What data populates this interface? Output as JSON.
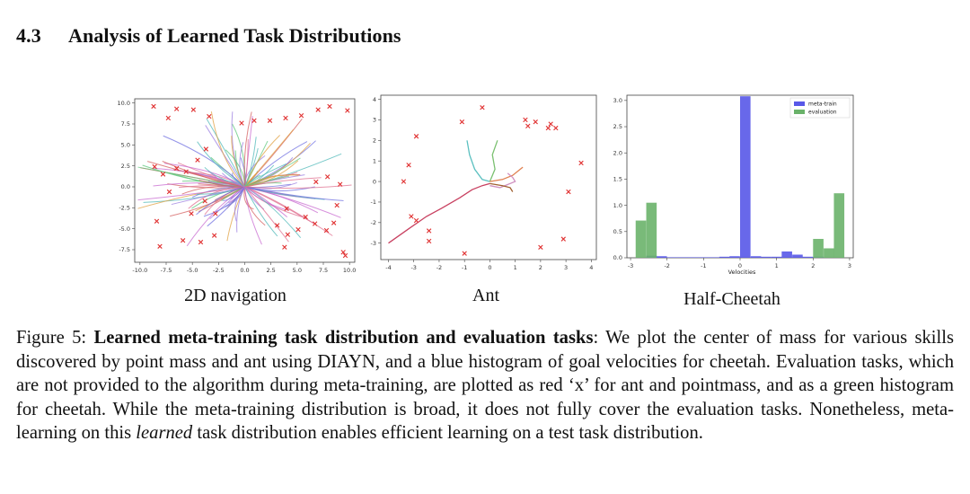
{
  "section": {
    "number": "4.3",
    "title": "Analysis of Learned Task Distributions"
  },
  "figures": {
    "nav": {
      "label": "2D navigation"
    },
    "ant": {
      "label": "Ant"
    },
    "cheetah": {
      "label": "Half-Cheetah"
    }
  },
  "caption": {
    "prefix": "Figure 5: ",
    "bold": "Learned meta-training task distribution and evaluation tasks",
    "part1": ": We plot the center of mass for various skills discovered by point mass and ant using DIAYN, and a blue histogram of goal velocities for cheetah. Evaluation tasks, which are not provided to the algorithm during meta-training, are plotted as red ‘x’ for ant and pointmass, and as a green histogram for cheetah. While the meta-training distribution is broad, it does not fully cover the evaluation tasks. Nonetheless, meta-learning on this ",
    "italic": "learned",
    "part2": " task distribution enables efficient learning on a test task distribution."
  },
  "chart_data": [
    {
      "type": "scatter",
      "name": "2D navigation",
      "title": "2D navigation",
      "xlim": [
        -10.5,
        10.5
      ],
      "ylim": [
        -9,
        10.5
      ],
      "xticks": [
        "-10.0",
        "-7.5",
        "-5.0",
        "-2.5",
        "0.0",
        "2.5",
        "5.0",
        "7.5",
        "10.0"
      ],
      "xtick_values": [
        -10,
        -7.5,
        -5,
        -2.5,
        0,
        2.5,
        5,
        7.5,
        10
      ],
      "yticks": [
        "10.0",
        "7.5",
        "5.0",
        "2.5",
        "0.0",
        "-2.5",
        "-5.0",
        "-7.5"
      ],
      "ytick_values": [
        10,
        7.5,
        5,
        2.5,
        0,
        -2.5,
        -5,
        -7.5
      ],
      "eval_tasks_x": [
        [
          -8.7,
          9.6
        ],
        [
          -7.3,
          8.2
        ],
        [
          -6.5,
          9.3
        ],
        [
          -4.9,
          9.2
        ],
        [
          -3.4,
          8.4
        ],
        [
          -0.3,
          7.6
        ],
        [
          0.9,
          7.9
        ],
        [
          2.4,
          7.9
        ],
        [
          3.9,
          8.2
        ],
        [
          5.4,
          8.5
        ],
        [
          7,
          9.2
        ],
        [
          8.1,
          9.6
        ],
        [
          9.8,
          9.1
        ],
        [
          -8.6,
          2.4
        ],
        [
          -7.8,
          1.5
        ],
        [
          -6.5,
          2.2
        ],
        [
          -5.6,
          1.8
        ],
        [
          -4.5,
          3.2
        ],
        [
          -3.7,
          4.5
        ],
        [
          -7.2,
          -0.6
        ],
        [
          -5.1,
          -3.2
        ],
        [
          -3.8,
          -1.7
        ],
        [
          -2.8,
          -3.2
        ],
        [
          -8.4,
          -4.1
        ],
        [
          -8.1,
          -7.1
        ],
        [
          -5.9,
          -6.4
        ],
        [
          -4.2,
          -6.6
        ],
        [
          -2.9,
          -5.8
        ],
        [
          4,
          -2.6
        ],
        [
          3.1,
          -4.6
        ],
        [
          4.1,
          -5.7
        ],
        [
          5.1,
          -5.1
        ],
        [
          6.7,
          -4.4
        ],
        [
          7.8,
          -5.2
        ],
        [
          8.5,
          -4.3
        ],
        [
          7.9,
          1.2
        ],
        [
          9.1,
          0.3
        ],
        [
          8.8,
          -2.2
        ],
        [
          6.8,
          0.6
        ],
        [
          5.8,
          -3.6
        ],
        [
          3.8,
          -7.2
        ],
        [
          9.6,
          -8.2
        ],
        [
          9.4,
          -7.8
        ]
      ],
      "series_colors": [
        "#d45f5f",
        "#6f6fe0",
        "#5cc77a",
        "#c86ad0",
        "#e0a040",
        "#4db8b8",
        "#9b7de0",
        "#e07090"
      ]
    },
    {
      "type": "scatter",
      "name": "Ant",
      "title": "Ant",
      "xlim": [
        -4.3,
        4.2
      ],
      "ylim": [
        -3.8,
        4.2
      ],
      "xticks": [
        "-4",
        "-3",
        "-2",
        "-1",
        "0",
        "1",
        "2",
        "3",
        "4"
      ],
      "xtick_values": [
        -4,
        -3,
        -2,
        -1,
        0,
        1,
        2,
        3,
        4
      ],
      "yticks": [
        "4",
        "3",
        "2",
        "1",
        "0",
        "-1",
        "-2",
        "-3"
      ],
      "ytick_values": [
        4,
        3,
        2,
        1,
        0,
        -1,
        -2,
        -3
      ],
      "eval_tasks_x": [
        [
          -0.3,
          3.6
        ],
        [
          -1.1,
          2.9
        ],
        [
          -2.9,
          2.2
        ],
        [
          -3.2,
          0.8
        ],
        [
          -3.4,
          0
        ],
        [
          -3.1,
          -1.7
        ],
        [
          -2.9,
          -1.9
        ],
        [
          -2.4,
          -2.4
        ],
        [
          -2.4,
          -2.9
        ],
        [
          -1,
          -3.5
        ],
        [
          1.4,
          3
        ],
        [
          1.8,
          2.9
        ],
        [
          1.5,
          2.7
        ],
        [
          2.3,
          2.6
        ],
        [
          2.4,
          2.8
        ],
        [
          2.6,
          2.6
        ],
        [
          3.6,
          0.9
        ],
        [
          3.1,
          -0.5
        ],
        [
          2.9,
          -2.8
        ],
        [
          2,
          -3.2
        ]
      ],
      "trajectories": [
        [
          [
            -4,
            -3
          ],
          [
            -3.2,
            -2.3
          ],
          [
            -2.5,
            -1.7
          ],
          [
            -1.9,
            -1.3
          ],
          [
            -1.2,
            -0.8
          ],
          [
            -0.7,
            -0.4
          ],
          [
            -0.3,
            -0.2
          ],
          [
            0,
            -0.1
          ]
        ],
        [
          [
            -0.9,
            2
          ],
          [
            -0.8,
            1.3
          ],
          [
            -0.6,
            0.6
          ],
          [
            -0.3,
            0.1
          ],
          [
            0,
            0
          ]
        ],
        [
          [
            0.3,
            2
          ],
          [
            0.1,
            1.3
          ],
          [
            0.2,
            0.6
          ],
          [
            0,
            0
          ]
        ],
        [
          [
            1.3,
            0.7
          ],
          [
            0.9,
            0.3
          ],
          [
            0.5,
            0.1
          ],
          [
            0,
            0
          ]
        ],
        [
          [
            0.7,
            0.4
          ],
          [
            0.9,
            0.2
          ],
          [
            1,
            0
          ],
          [
            0.4,
            -0.3
          ],
          [
            0,
            -0.2
          ]
        ],
        [
          [
            0.9,
            -0.5
          ],
          [
            0.8,
            -0.3
          ],
          [
            0.5,
            -0.2
          ],
          [
            0,
            -0.1
          ]
        ]
      ],
      "trajectory_colors": [
        "#c84060",
        "#5bc0c0",
        "#7ac070",
        "#e08050",
        "#d090c0",
        "#a06030"
      ]
    },
    {
      "type": "bar",
      "name": "Half-Cheetah",
      "title": "Half-Cheetah",
      "xlabel": "Velocities",
      "xlim": [
        -3.1,
        3.1
      ],
      "ylim": [
        0,
        3.1
      ],
      "xticks": [
        "-3",
        "-2",
        "-1",
        "0",
        "1",
        "2",
        "3"
      ],
      "xtick_values": [
        -3,
        -2,
        -1,
        0,
        1,
        2,
        3
      ],
      "yticks": [
        "0.0",
        "0.5",
        "1.0",
        "1.5",
        "2.0",
        "2.5",
        "3.0"
      ],
      "ytick_values": [
        0,
        0.5,
        1,
        1.5,
        2,
        2.5,
        3
      ],
      "bin_width": 0.2857,
      "series": [
        {
          "name": "meta-train",
          "color": "#5858e8",
          "bins": [
            [
              -2.57,
              0.04
            ],
            [
              -2.29,
              0.03
            ],
            [
              -2,
              0.01
            ],
            [
              -1.71,
              0.01
            ],
            [
              -1.43,
              0.01
            ],
            [
              -1.14,
              0.01
            ],
            [
              -0.86,
              0.01
            ],
            [
              -0.57,
              0.02
            ],
            [
              -0.29,
              0.03
            ],
            [
              0,
              3.08
            ],
            [
              0.29,
              0.03
            ],
            [
              0.57,
              0.02
            ],
            [
              0.86,
              0.02
            ],
            [
              1.14,
              0.12
            ],
            [
              1.43,
              0.06
            ],
            [
              1.71,
              0.02
            ],
            [
              2,
              0.02
            ]
          ]
        },
        {
          "name": "evaluation",
          "color": "#6ab26a",
          "bins": [
            [
              -2.86,
              0.71
            ],
            [
              -2.57,
              1.05
            ],
            [
              2,
              0.36
            ],
            [
              2.29,
              0.18
            ],
            [
              2.57,
              1.23
            ]
          ]
        }
      ],
      "legend": "top-right"
    }
  ]
}
